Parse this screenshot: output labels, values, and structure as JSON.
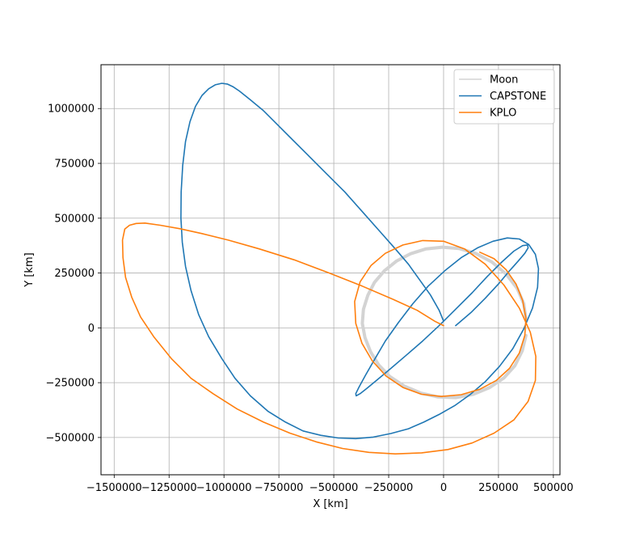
{
  "chart_data": {
    "type": "line",
    "xlabel": "X [km]",
    "ylabel": "Y [km]",
    "xlim": [
      -1560000,
      530000
    ],
    "ylim": [
      -670000,
      1200000
    ],
    "xticks": [
      -1500000,
      -1250000,
      -1000000,
      -750000,
      -500000,
      -250000,
      0,
      250000,
      500000
    ],
    "xtick_labels": [
      "−1500000",
      "−1250000",
      "−1000000",
      "−750000",
      "−500000",
      "−250000",
      "0",
      "250000",
      "500000"
    ],
    "yticks": [
      -500000,
      -250000,
      0,
      250000,
      500000,
      750000,
      1000000
    ],
    "ytick_labels": [
      "−500000",
      "−250000",
      "0",
      "250000",
      "500000",
      "750000",
      "1000000"
    ],
    "grid": true,
    "legend_position": "top-right",
    "series": [
      {
        "name": "Moon",
        "color": "#d3d3d3",
        "x": [
          375000,
          365000,
          335000,
          285000,
          220000,
          145000,
          70000,
          -5000,
          -80000,
          -150000,
          -215000,
          -270000,
          -315000,
          -345000,
          -365000,
          -370000,
          -358000,
          -332000,
          -295000,
          -245000,
          -180000,
          -105000,
          -25000,
          55000,
          135000,
          210000,
          275000,
          325000,
          358000,
          375000
        ],
        "y": [
          40000,
          110000,
          180000,
          245000,
          300000,
          340000,
          362000,
          368000,
          360000,
          338000,
          304000,
          260000,
          207000,
          148000,
          85000,
          20000,
          -45000,
          -110000,
          -170000,
          -222000,
          -265000,
          -297000,
          -315000,
          -318000,
          -303000,
          -272000,
          -228000,
          -172000,
          -105000,
          -35000
        ]
      },
      {
        "name": "CAPSTONE",
        "color": "#1f77b4",
        "x": [
          0,
          -20000,
          -60000,
          -110000,
          -160000,
          -220000,
          -290000,
          -370000,
          -450000,
          -540000,
          -620000,
          -700000,
          -760000,
          -820000,
          -880000,
          -930000,
          -960000,
          -985000,
          -1010000,
          -1040000,
          -1070000,
          -1100000,
          -1130000,
          -1155000,
          -1175000,
          -1188000,
          -1195000,
          -1196000,
          -1190000,
          -1175000,
          -1150000,
          -1115000,
          -1070000,
          -1010000,
          -950000,
          -880000,
          -800000,
          -720000,
          -640000,
          -560000,
          -480000,
          -400000,
          -320000,
          -240000,
          -160000,
          -90000,
          -20000,
          50000,
          120000,
          190000,
          255000,
          315000,
          365000,
          405000,
          428000,
          432000,
          418000,
          388000,
          345000,
          290000,
          225000,
          155000,
          80000,
          5000,
          -70000,
          -140000,
          -205000,
          -265000,
          -315000,
          -355000,
          -385000,
          -400000,
          -398000,
          -380000,
          -348000,
          -300000,
          -240000,
          -170000,
          -95000,
          -20000,
          55000,
          130000,
          200000,
          265000,
          320000,
          360000,
          382000,
          385000,
          370000,
          340000,
          300000,
          250000,
          190000,
          125000,
          55000
        ],
        "y": [
          30000,
          80000,
          150000,
          220000,
          290000,
          360000,
          440000,
          530000,
          620000,
          710000,
          790000,
          870000,
          930000,
          990000,
          1040000,
          1080000,
          1100000,
          1112000,
          1115000,
          1108000,
          1090000,
          1060000,
          1010000,
          940000,
          850000,
          740000,
          620000,
          500000,
          390000,
          280000,
          170000,
          60000,
          -40000,
          -140000,
          -230000,
          -310000,
          -380000,
          -430000,
          -470000,
          -490000,
          -502000,
          -505000,
          -498000,
          -482000,
          -460000,
          -430000,
          -395000,
          -355000,
          -305000,
          -245000,
          -175000,
          -95000,
          -5000,
          90000,
          185000,
          270000,
          335000,
          380000,
          405000,
          410000,
          395000,
          365000,
          320000,
          260000,
          190000,
          110000,
          25000,
          -60000,
          -145000,
          -215000,
          -270000,
          -300000,
          -310000,
          -300000,
          -275000,
          -235000,
          -185000,
          -125000,
          -60000,
          10000,
          85000,
          160000,
          235000,
          300000,
          350000,
          375000,
          378000,
          365000,
          340000,
          305000,
          260000,
          200000,
          135000,
          70000,
          10000
        ]
      },
      {
        "name": "KPLO",
        "color": "#ff7f0e",
        "x": [
          0,
          -40000,
          -120000,
          -230000,
          -370000,
          -520000,
          -680000,
          -840000,
          -980000,
          -1100000,
          -1200000,
          -1290000,
          -1360000,
          -1400000,
          -1430000,
          -1452000,
          -1462000,
          -1460000,
          -1448000,
          -1420000,
          -1380000,
          -1320000,
          -1240000,
          -1150000,
          -1050000,
          -940000,
          -820000,
          -700000,
          -580000,
          -460000,
          -340000,
          -220000,
          -100000,
          20000,
          130000,
          230000,
          320000,
          385000,
          418000,
          420000,
          395000,
          345000,
          275000,
          190000,
          95000,
          0,
          -95000,
          -185000,
          -265000,
          -330000,
          -380000,
          -405000,
          -400000,
          -372000,
          -325000,
          -262000,
          -185000,
          -100000,
          -10000,
          80000,
          165000,
          240000,
          300000,
          345000,
          370000,
          375000,
          360000,
          330000,
          285000,
          230000,
          165000
        ],
        "y": [
          10000,
          30000,
          80000,
          130000,
          190000,
          250000,
          310000,
          360000,
          400000,
          430000,
          452000,
          468000,
          478000,
          476000,
          468000,
          450000,
          400000,
          320000,
          230000,
          140000,
          50000,
          -40000,
          -140000,
          -230000,
          -300000,
          -370000,
          -430000,
          -480000,
          -520000,
          -550000,
          -568000,
          -575000,
          -570000,
          -555000,
          -525000,
          -480000,
          -420000,
          -335000,
          -240000,
          -130000,
          -20000,
          90000,
          195000,
          290000,
          360000,
          395000,
          398000,
          378000,
          340000,
          285000,
          210000,
          120000,
          20000,
          -70000,
          -150000,
          -220000,
          -272000,
          -303000,
          -313000,
          -305000,
          -280000,
          -240000,
          -185000,
          -115000,
          -35000,
          45000,
          125000,
          200000,
          265000,
          315000,
          345000
        ]
      }
    ]
  }
}
